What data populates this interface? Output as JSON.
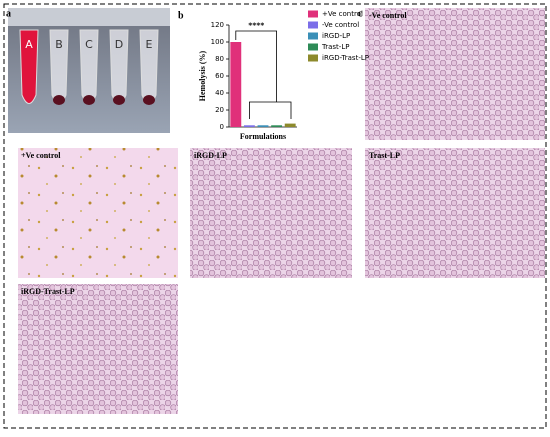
{
  "panels": [
    "a",
    "b",
    "c"
  ],
  "photo": {
    "tube_labels": [
      "A",
      "B",
      "C",
      "D",
      "E"
    ]
  },
  "chart_data": {
    "type": "bar",
    "ylabel": "Hemolysis (%)",
    "xlabel": "Formulations",
    "categories": [
      "+Ve control",
      "-Ve control",
      "iRGD-LP",
      "Trast-LP",
      "iRGD-Trast-LP"
    ],
    "values": [
      100,
      2,
      2,
      2,
      4
    ],
    "colors": [
      "#e0307a",
      "#7b6ee8",
      "#3a8fb7",
      "#2e8b57",
      "#8d8a2c"
    ],
    "ylim": [
      0,
      120
    ],
    "yticks": [
      0,
      20,
      40,
      60,
      80,
      100,
      120
    ],
    "annotation": "****",
    "legend": "right"
  },
  "images": [
    {
      "caption": "-Ve control"
    },
    {
      "caption": "+Ve control"
    },
    {
      "caption": "iRGD-LP"
    },
    {
      "caption": "Trast-LP"
    },
    {
      "caption": "iRGD-Trast-LP"
    }
  ]
}
